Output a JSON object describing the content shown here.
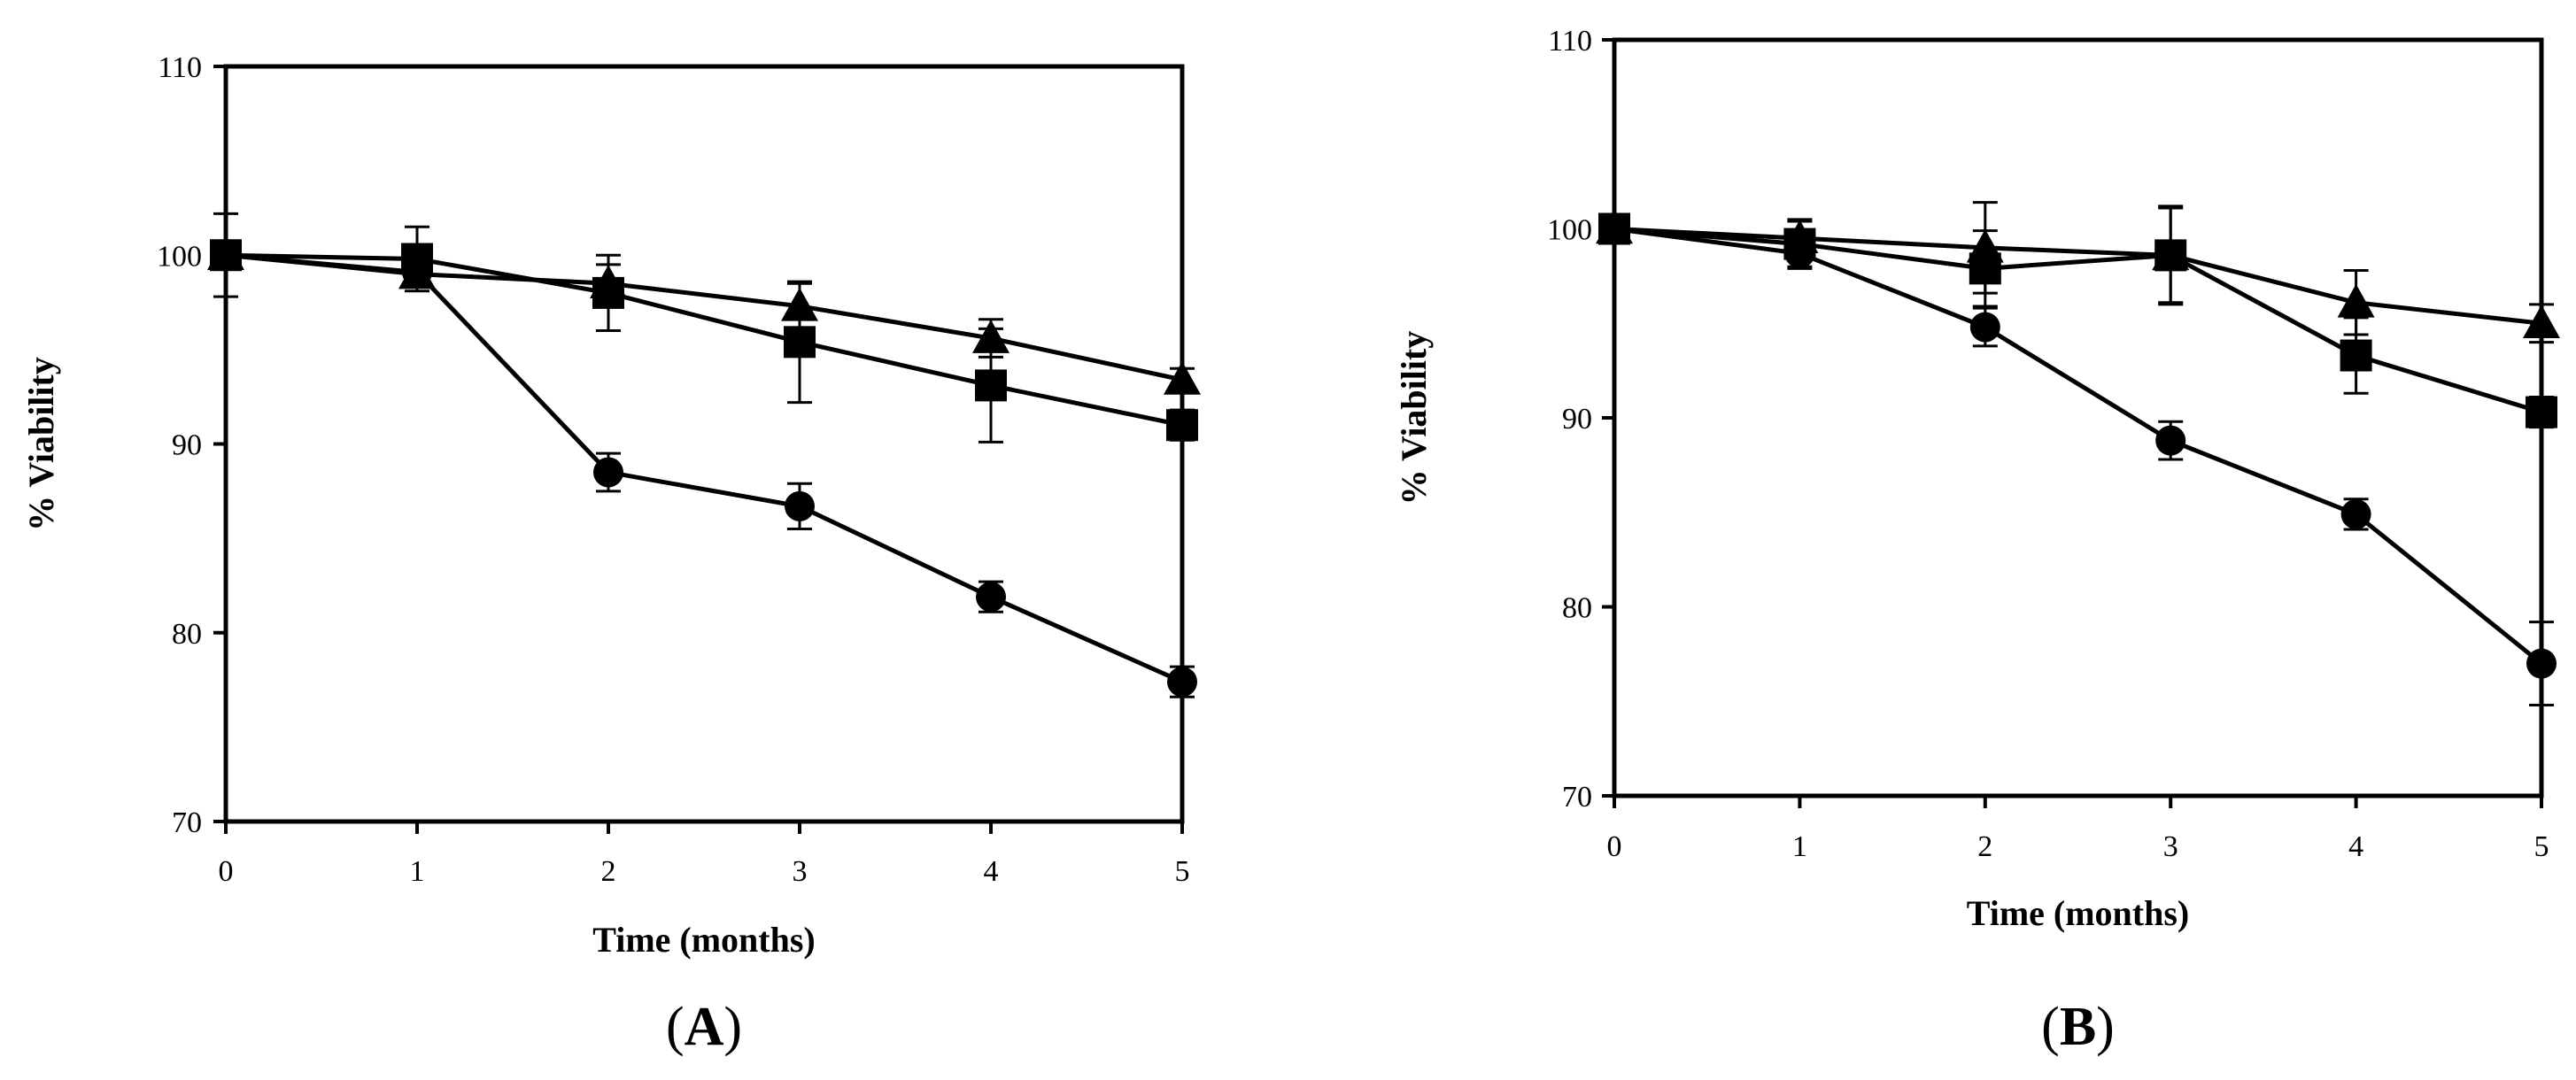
{
  "chart_data": [
    {
      "type": "line",
      "panel": "A",
      "panel_label": {
        "open": "(",
        "letter": "A",
        "close": ")"
      },
      "xlabel": "Time (months)",
      "ylabel": "% Viability",
      "xlim": [
        0,
        5
      ],
      "ylim": [
        70,
        110
      ],
      "x_ticks": [
        0,
        1,
        2,
        3,
        4,
        5
      ],
      "y_ticks": [
        70,
        80,
        90,
        100,
        110
      ],
      "grid": false,
      "x": [
        0,
        1,
        2,
        3,
        4,
        5
      ],
      "series": [
        {
          "marker": "triangle",
          "values": [
            100,
            99.0,
            98.5,
            97.3,
            95.6,
            93.4
          ],
          "errors": [
            0.5,
            0.6,
            1.0,
            1.2,
            1.0,
            0.6
          ]
        },
        {
          "marker": "square",
          "values": [
            100,
            99.8,
            98.0,
            95.4,
            93.1,
            91.0
          ],
          "errors": [
            2.2,
            1.7,
            2.0,
            3.2,
            3.0,
            0.8
          ]
        },
        {
          "marker": "circle",
          "values": [
            100,
            99.1,
            88.5,
            86.7,
            81.9,
            77.4
          ],
          "errors": [
            0.6,
            0.6,
            1.0,
            1.2,
            0.8,
            0.8
          ]
        }
      ]
    },
    {
      "type": "line",
      "panel": "B",
      "panel_label": {
        "open": "(",
        "letter": "B",
        "close": ")"
      },
      "xlabel": "Time (months)",
      "ylabel": "% Viability",
      "xlim": [
        0,
        5
      ],
      "ylim": [
        70,
        110
      ],
      "x_ticks": [
        0,
        1,
        2,
        3,
        4,
        5
      ],
      "y_ticks": [
        70,
        80,
        90,
        100,
        110
      ],
      "grid": false,
      "x": [
        0,
        1,
        2,
        3,
        4,
        5
      ],
      "series": [
        {
          "marker": "triangle",
          "values": [
            100,
            99.5,
            99.0,
            98.6,
            96.1,
            95.0
          ],
          "errors": [
            0.5,
            1.0,
            2.4,
            2.6,
            1.7,
            1.0
          ]
        },
        {
          "marker": "square",
          "values": [
            100,
            99.2,
            97.9,
            98.6,
            93.3,
            90.3
          ],
          "errors": [
            0.6,
            1.2,
            2.0,
            2.5,
            2.0,
            0.8
          ]
        },
        {
          "marker": "circle",
          "values": [
            100,
            98.7,
            94.8,
            88.8,
            84.9,
            77.0
          ],
          "errors": [
            0.5,
            0.8,
            1.0,
            1.0,
            0.8,
            2.2
          ]
        }
      ]
    }
  ]
}
